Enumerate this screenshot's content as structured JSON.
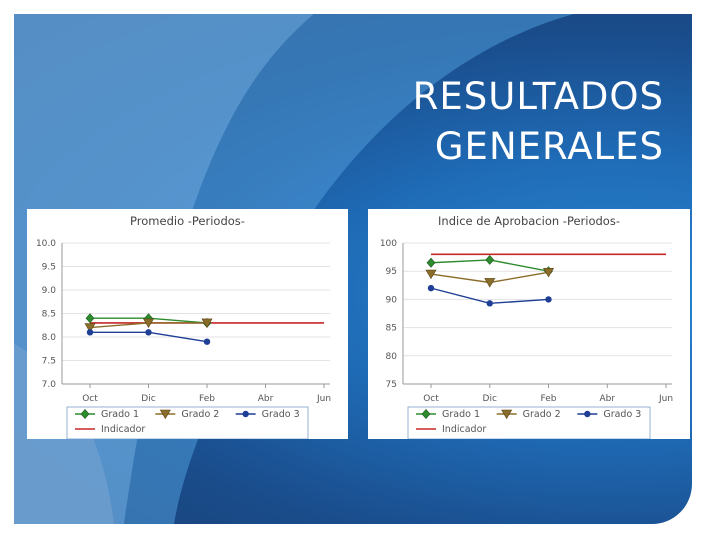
{
  "slide": {
    "title_line1": "RESULTADOS",
    "title_line2": "GENERALES"
  },
  "colors": {
    "grado1": "#2e8b2e",
    "grado2": "#8b6d2a",
    "grado3": "#1f3f96",
    "indicador": "#c62828"
  },
  "chart_data": [
    {
      "type": "line",
      "title": "Promedio -Periodos-",
      "categories": [
        "Oct",
        "Dic",
        "Feb",
        "Abr",
        "Jun"
      ],
      "ylim": [
        7.0,
        10.0
      ],
      "y_ticks": [
        "10.0",
        "9.5",
        "9.0",
        "8.5",
        "8.0",
        "7.5",
        "7.0"
      ],
      "grid": true,
      "legend": "bottom",
      "series": [
        {
          "name": "Grado 1",
          "marker": "diamond",
          "values": [
            8.4,
            8.4,
            8.3,
            null,
            null
          ]
        },
        {
          "name": "Grado 2",
          "marker": "triangle-down",
          "values": [
            8.2,
            8.3,
            8.3,
            null,
            null
          ]
        },
        {
          "name": "Grado 3",
          "marker": "circle",
          "values": [
            8.1,
            8.1,
            7.9,
            null,
            null
          ]
        },
        {
          "name": "Indicador",
          "marker": "none",
          "values": [
            8.3,
            8.3,
            8.3,
            8.3,
            8.3
          ]
        }
      ]
    },
    {
      "type": "line",
      "title": "Indice de Aprobacion -Periodos-",
      "categories": [
        "Oct",
        "Dic",
        "Feb",
        "Abr",
        "Jun"
      ],
      "ylim": [
        75,
        100
      ],
      "y_ticks": [
        "100",
        "95",
        "90",
        "85",
        "80",
        "75"
      ],
      "grid": true,
      "legend": "bottom",
      "series": [
        {
          "name": "Grado 1",
          "marker": "diamond",
          "values": [
            96.5,
            97,
            95,
            null,
            null
          ]
        },
        {
          "name": "Grado 2",
          "marker": "triangle-down",
          "values": [
            94.5,
            93,
            94.8,
            null,
            null
          ]
        },
        {
          "name": "Grado 3",
          "marker": "circle",
          "values": [
            92,
            89.3,
            90,
            null,
            null
          ]
        },
        {
          "name": "Indicador",
          "marker": "none",
          "values": [
            98,
            98,
            98,
            98,
            98
          ]
        }
      ]
    }
  ]
}
